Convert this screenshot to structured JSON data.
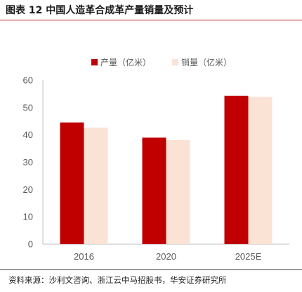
{
  "header": {
    "title": "图表 12 中国人造革合成革产量销量及预计"
  },
  "footer": {
    "source": "资料来源：沙利文咨询、浙江云中马招股书，华安证券研究所"
  },
  "chart_data": {
    "type": "bar",
    "title": "",
    "xlabel": "",
    "ylabel": "",
    "categories": [
      "2016",
      "2020",
      "2025E"
    ],
    "series": [
      {
        "name": "产量（亿米）",
        "color": "#c00000",
        "values": [
          44.5,
          39.0,
          54.3
        ]
      },
      {
        "name": "销量（亿米）",
        "color": "#fae3d5",
        "values": [
          42.6,
          38.1,
          53.9
        ]
      }
    ],
    "ylim": [
      0,
      60
    ],
    "yticks": [
      "0",
      "10",
      "20",
      "30",
      "40",
      "50",
      "60"
    ],
    "grid": false,
    "legend_position": "top-center"
  }
}
